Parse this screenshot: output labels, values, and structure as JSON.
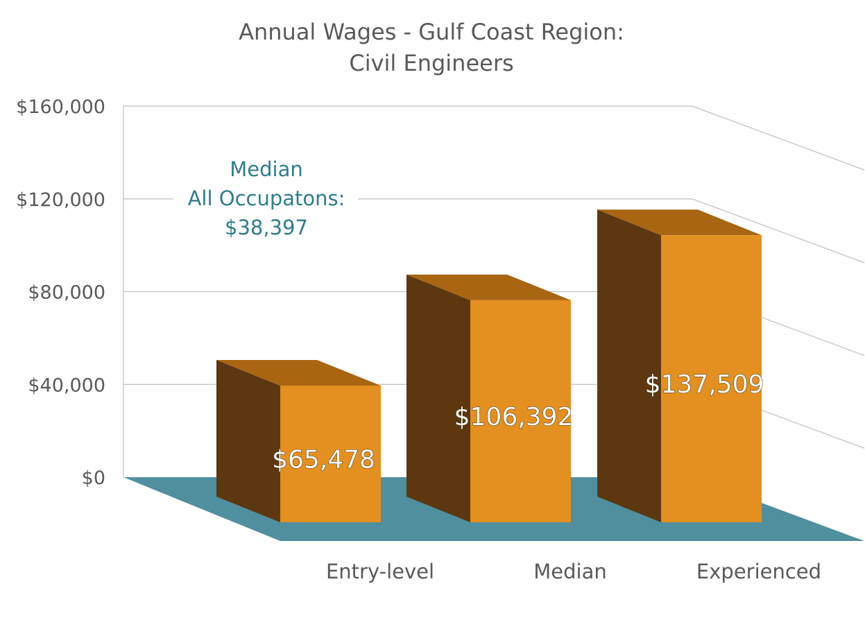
{
  "colors": {
    "bar_front": "#E39020",
    "bar_side": "#5C3710",
    "bar_top": "#A86512",
    "floor": "#4F8F9E",
    "gridline": "#BFBFBF",
    "text": "#595959",
    "annotation": "#2E7D8C"
  },
  "chart_data": {
    "type": "bar",
    "title": [
      "Annual Wages - Gulf Coast Region:",
      "Civil Engineers"
    ],
    "categories": [
      "Entry-level",
      "Median",
      "Experienced"
    ],
    "values": [
      65478,
      106392,
      137509
    ],
    "value_labels": [
      "$65,478",
      "$106,392",
      "$137,509"
    ],
    "ylim": [
      0,
      160000
    ],
    "yticks": [
      0,
      40000,
      80000,
      120000,
      160000
    ],
    "ytick_labels": [
      "$0",
      "$40,000",
      "$80,000",
      "$120,000",
      "$160,000"
    ],
    "xlabel": "",
    "ylabel": "",
    "grid": true,
    "legend": "none",
    "annotation": {
      "lines": [
        "Median",
        "All Occupatons:",
        "$38,397"
      ]
    }
  }
}
